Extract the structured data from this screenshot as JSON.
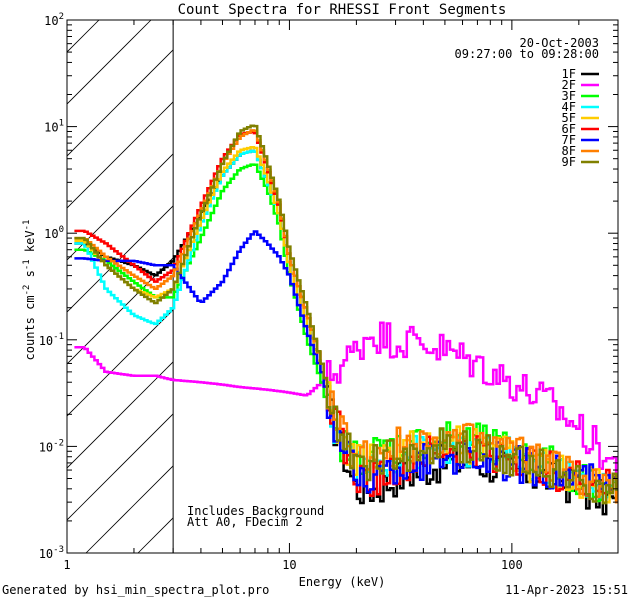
{
  "chart_data": {
    "type": "line",
    "title": "Count Spectra for RHESSI Front Segments",
    "xlabel": "Energy (keV)",
    "ylabel_parts": {
      "main": "counts cm",
      "exp1": "-2",
      "mid1": " s",
      "exp2": "-1",
      "mid2": " keV",
      "exp3": "-1"
    },
    "xscale": "log",
    "yscale": "log",
    "xlim": [
      1,
      300
    ],
    "ylim": [
      0.001,
      100
    ],
    "x_ticks": [
      {
        "value": 1,
        "label": "1"
      },
      {
        "value": 10,
        "label": "10"
      },
      {
        "value": 100,
        "label": "100"
      }
    ],
    "y_ticks": [
      {
        "value": 100,
        "base": "10",
        "exp": "2"
      },
      {
        "value": 10,
        "base": "10",
        "exp": "1"
      },
      {
        "value": 1,
        "base": "10",
        "exp": "0"
      },
      {
        "value": 0.1,
        "base": "10",
        "exp": "-1"
      },
      {
        "value": 0.01,
        "base": "10",
        "exp": "-2"
      },
      {
        "value": 0.001,
        "base": "10",
        "exp": "-3"
      }
    ],
    "hatched_region_keV": [
      1,
      3
    ],
    "date": "20-Oct-2003",
    "time_range": "09:27:00 to 09:28:00",
    "annotations": [
      "Includes Background",
      "Att A0, FDecim 2"
    ],
    "legend_position": "top-right",
    "series": [
      {
        "name": "1F",
        "color": "#000000",
        "x": [
          1.2,
          1.5,
          2,
          2.5,
          3,
          4,
          5,
          6,
          7,
          8,
          9,
          10,
          12,
          14,
          16,
          20,
          25,
          30,
          40,
          50,
          70,
          100,
          150,
          200,
          280
        ],
        "y": [
          0.8,
          0.6,
          0.5,
          0.4,
          0.55,
          1.5,
          3.5,
          5.5,
          6,
          3,
          1.5,
          0.5,
          0.15,
          0.05,
          0.015,
          0.004,
          0.004,
          0.005,
          0.006,
          0.007,
          0.007,
          0.006,
          0.005,
          0.004,
          0.003
        ]
      },
      {
        "name": "2F",
        "color": "#ff00ff",
        "x": [
          1.2,
          1.5,
          2,
          2.5,
          3,
          4,
          5,
          6,
          7,
          8,
          9,
          10,
          12,
          14,
          16,
          20,
          23,
          25,
          30,
          40,
          50,
          70,
          100,
          150,
          200,
          280
        ],
        "y": [
          0.085,
          0.05,
          0.046,
          0.046,
          0.042,
          0.04,
          0.038,
          0.036,
          0.035,
          0.034,
          0.033,
          0.032,
          0.03,
          0.04,
          0.05,
          0.08,
          0.12,
          0.11,
          0.1,
          0.095,
          0.08,
          0.06,
          0.04,
          0.025,
          0.015,
          0.007
        ]
      },
      {
        "name": "3F",
        "color": "#00ff00",
        "x": [
          1.2,
          1.5,
          2,
          2.5,
          3,
          4,
          5,
          6,
          7,
          8,
          9,
          10,
          12,
          14,
          16,
          20,
          25,
          30,
          40,
          50,
          70,
          100,
          150,
          200,
          280
        ],
        "y": [
          0.7,
          0.55,
          0.35,
          0.25,
          0.25,
          0.9,
          2.5,
          4,
          4.5,
          2.5,
          1.2,
          0.4,
          0.1,
          0.04,
          0.012,
          0.008,
          0.009,
          0.01,
          0.011,
          0.012,
          0.011,
          0.009,
          0.007,
          0.005,
          0.004
        ]
      },
      {
        "name": "4F",
        "color": "#00ffff",
        "x": [
          1.2,
          1.5,
          2,
          2.5,
          3,
          4,
          5,
          6,
          7,
          8,
          9,
          10,
          12,
          14,
          16,
          20,
          25,
          30,
          40,
          50,
          70,
          100,
          150,
          200,
          280
        ],
        "y": [
          0.8,
          0.3,
          0.17,
          0.14,
          0.2,
          1.2,
          3.5,
          5.5,
          6,
          3,
          1.5,
          0.5,
          0.15,
          0.05,
          0.015,
          0.007,
          0.007,
          0.008,
          0.009,
          0.01,
          0.009,
          0.008,
          0.006,
          0.005,
          0.004
        ]
      },
      {
        "name": "5F",
        "color": "#ffcc00",
        "x": [
          1.2,
          1.5,
          2,
          2.5,
          3,
          4,
          5,
          6,
          7,
          8,
          9,
          10,
          12,
          14,
          16,
          20,
          25,
          30,
          40,
          50,
          70,
          100,
          150,
          200,
          280
        ],
        "y": [
          0.85,
          0.5,
          0.3,
          0.25,
          0.3,
          1.3,
          3.8,
          6,
          6.5,
          3.2,
          1.5,
          0.5,
          0.15,
          0.05,
          0.015,
          0.007,
          0.008,
          0.009,
          0.01,
          0.011,
          0.01,
          0.008,
          0.006,
          0.005,
          0.004
        ]
      },
      {
        "name": "6F",
        "color": "#ff0000",
        "x": [
          1.2,
          1.5,
          2,
          2.5,
          3,
          4,
          5,
          6,
          7,
          8,
          9,
          10,
          12,
          14,
          16,
          20,
          25,
          30,
          40,
          50,
          70,
          100,
          150,
          200,
          280
        ],
        "y": [
          1.05,
          0.8,
          0.5,
          0.35,
          0.45,
          1.8,
          5,
          8.5,
          9,
          4,
          1.8,
          0.6,
          0.18,
          0.06,
          0.018,
          0.005,
          0.005,
          0.006,
          0.008,
          0.009,
          0.009,
          0.008,
          0.006,
          0.005,
          0.004
        ]
      },
      {
        "name": "7F",
        "color": "#0000ff",
        "x": [
          1.2,
          1.5,
          2,
          2.5,
          3,
          4,
          5,
          6,
          7,
          8,
          9,
          10,
          12,
          14,
          16,
          20,
          25,
          30,
          40,
          50,
          70,
          100,
          150,
          200,
          280
        ],
        "y": [
          0.58,
          0.55,
          0.55,
          0.5,
          0.5,
          0.22,
          0.35,
          0.7,
          1.05,
          0.8,
          0.6,
          0.4,
          0.12,
          0.05,
          0.015,
          0.005,
          0.005,
          0.006,
          0.007,
          0.008,
          0.008,
          0.007,
          0.006,
          0.005,
          0.004
        ]
      },
      {
        "name": "8F",
        "color": "#ff7f00",
        "x": [
          1.2,
          1.5,
          2,
          2.5,
          3,
          4,
          5,
          6,
          7,
          8,
          9,
          10,
          12,
          14,
          16,
          20,
          25,
          30,
          40,
          50,
          70,
          100,
          150,
          200,
          280
        ],
        "y": [
          0.9,
          0.6,
          0.4,
          0.3,
          0.4,
          1.6,
          4.5,
          8,
          9.5,
          4.2,
          1.9,
          0.6,
          0.18,
          0.06,
          0.018,
          0.008,
          0.009,
          0.01,
          0.011,
          0.012,
          0.011,
          0.009,
          0.007,
          0.005,
          0.004
        ]
      },
      {
        "name": "9F",
        "color": "#808000",
        "x": [
          1.2,
          1.5,
          2,
          2.5,
          3,
          4,
          5,
          6,
          7,
          8,
          9,
          10,
          12,
          14,
          16,
          20,
          25,
          30,
          40,
          50,
          70,
          100,
          150,
          200,
          280
        ],
        "y": [
          0.9,
          0.5,
          0.3,
          0.22,
          0.3,
          1.5,
          4.5,
          9,
          10.5,
          4.5,
          2,
          0.7,
          0.2,
          0.06,
          0.018,
          0.007,
          0.007,
          0.008,
          0.009,
          0.01,
          0.009,
          0.008,
          0.006,
          0.005,
          0.004
        ]
      }
    ]
  },
  "footer": {
    "generated": "Generated by hsi_min_spectra_plot.pro",
    "timestamp": "11-Apr-2023 15:51"
  }
}
